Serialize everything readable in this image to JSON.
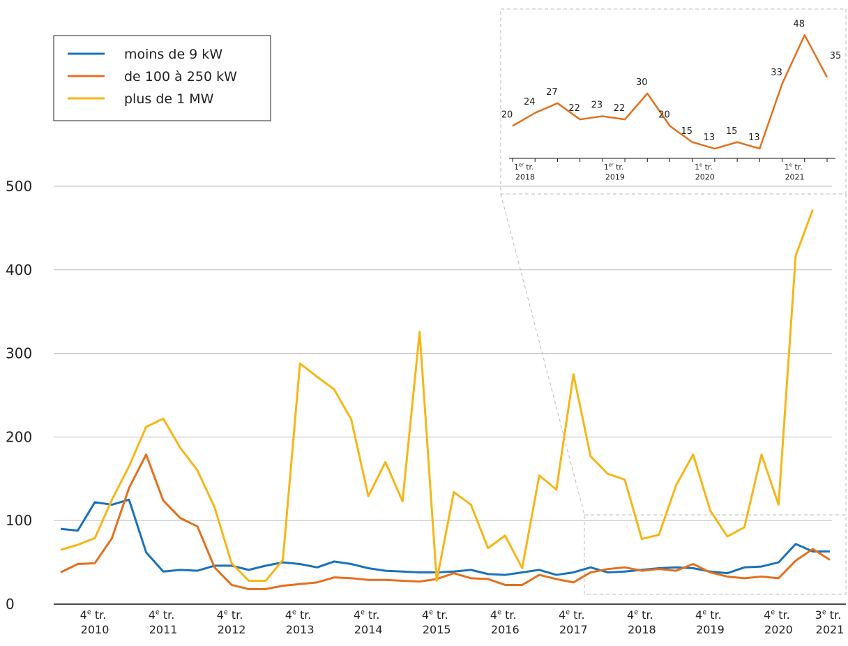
{
  "chart_data": [
    {
      "type": "line",
      "categories": [
        null,
        null,
        "4e tr. 2010",
        null,
        null,
        null,
        "4e tr. 2011",
        null,
        null,
        null,
        "4e tr. 2012",
        null,
        null,
        null,
        "4e tr. 2013",
        null,
        null,
        null,
        "4e tr. 2014",
        null,
        null,
        null,
        "4e tr. 2015",
        null,
        null,
        null,
        "4e tr. 2016",
        null,
        null,
        null,
        "4e tr. 2017",
        null,
        null,
        null,
        "4e tr. 2018",
        null,
        null,
        null,
        "4e tr. 2019",
        null,
        null,
        null,
        "4e tr. 2020",
        null,
        null,
        "3e tr. 2021"
      ],
      "series": [
        {
          "name": "moins de 9 kW",
          "color": "#1a72b8",
          "values": [
            90,
            88,
            122,
            119,
            125,
            62,
            39,
            41,
            40,
            46,
            46,
            41,
            46,
            50,
            48,
            44,
            51,
            48,
            43,
            40,
            39,
            38,
            38,
            39,
            41,
            36,
            35,
            38,
            41,
            35,
            38,
            44,
            38,
            39,
            41,
            43,
            44,
            43,
            39,
            37,
            44,
            45,
            50,
            72,
            63,
            63
          ]
        },
        {
          "name": "de 100 à 250 kW",
          "color": "#e3701e",
          "values": [
            38,
            48,
            49,
            79,
            139,
            179,
            124,
            103,
            93,
            44,
            23,
            18,
            18,
            22,
            24,
            26,
            32,
            31,
            29,
            29,
            28,
            27,
            30,
            37,
            31,
            30,
            23,
            23,
            35,
            30,
            26,
            38,
            42,
            44,
            40,
            42,
            40,
            48,
            38,
            33,
            31,
            33,
            31,
            52,
            66,
            53
          ]
        },
        {
          "name": "plus de 1 MW",
          "color": "#f6b617",
          "values": [
            65,
            71,
            79,
            125,
            165,
            212,
            222,
            187,
            160,
            116,
            49,
            28,
            28,
            53,
            288,
            272,
            257,
            221,
            129,
            170,
            123,
            326,
            28,
            134,
            119,
            67,
            82,
            43,
            154,
            137,
            275,
            177,
            156,
            149,
            78,
            83,
            142,
            179,
            112,
            81,
            92,
            179,
            119,
            417,
            472,
            null
          ]
        }
      ],
      "ylim": [
        0,
        500
      ],
      "yticks": [
        0,
        100,
        200,
        300,
        400,
        500
      ],
      "grid": true,
      "legend": "top-left"
    },
    {
      "type": "line",
      "categories": [
        "1er tr. 2018",
        null,
        null,
        null,
        "1er tr. 2019",
        null,
        null,
        null,
        "1e tr. 2020",
        null,
        null,
        null,
        "1e tr. 2021",
        null,
        null
      ],
      "values": [
        20,
        24,
        27,
        22,
        23,
        22,
        30,
        20,
        15,
        13,
        15,
        13,
        33,
        48,
        35
      ],
      "color": "#e3701e",
      "ylim": [
        10,
        50
      ]
    }
  ]
}
